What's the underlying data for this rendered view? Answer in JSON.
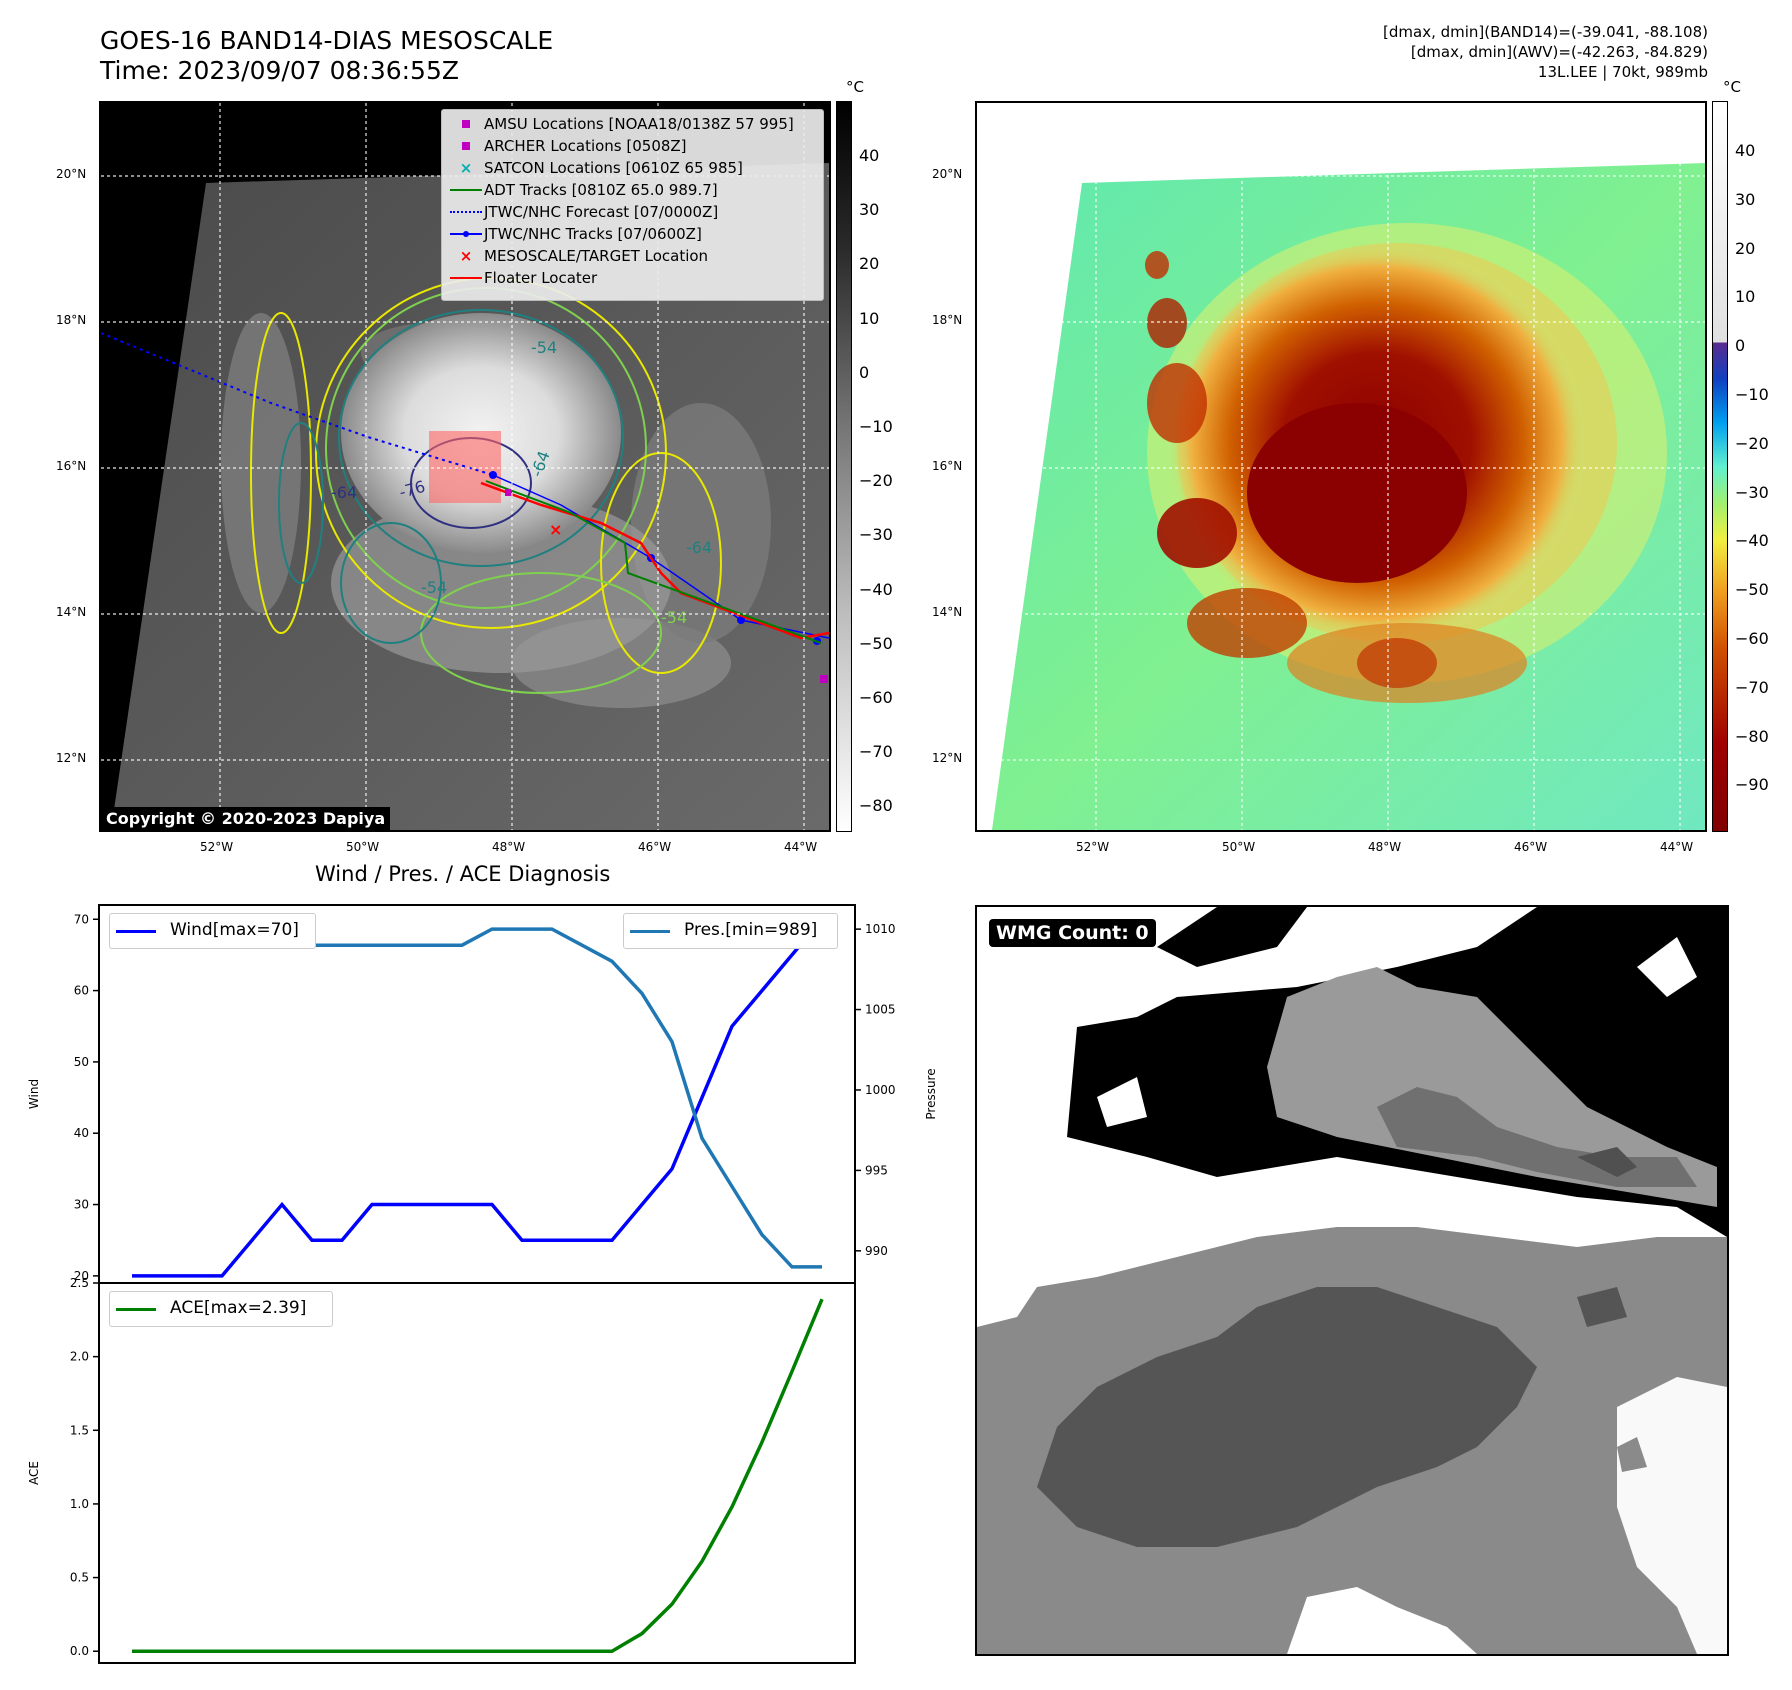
{
  "header": {
    "title_line1": "GOES-16 BAND14-DIAS MESOSCALE",
    "title_line2": "Time: 2023/09/07 08:36:55Z",
    "info_line1": "[dmax, dmin](BAND14)=(-39.041, -88.108)",
    "info_line2": "[dmax, dmin](AWV)=(-42.263, -84.829)",
    "info_line3": "13L.LEE | 70kt, 989mb"
  },
  "map": {
    "lat_labels": [
      "20°N",
      "18°N",
      "16°N",
      "14°N",
      "12°N"
    ],
    "lon_labels": [
      "52°W",
      "50°W",
      "48°W",
      "46°W",
      "44°W"
    ],
    "copyright": "Copyright © 2020-2023 Dapiya",
    "contour_labels": [
      "-54",
      "-64",
      "-76",
      "-64",
      "-54",
      "-64",
      "-54"
    ],
    "legend": [
      {
        "symbol": "square",
        "color": "#c000c0",
        "label": "AMSU Locations [NOAA18/0138Z 57 995]"
      },
      {
        "symbol": "square",
        "color": "#c000c0",
        "label": "ARCHER Locations [0508Z]"
      },
      {
        "symbol": "x",
        "color": "#00b0b0",
        "label": "SATCON Locations [0610Z 65 985]"
      },
      {
        "symbol": "line",
        "color": "#008000",
        "label": "ADT Tracks [0810Z 65.0 989.7]"
      },
      {
        "symbol": "dotted",
        "color": "#0000ff",
        "label": "JTWC/NHC Forecast [07/0000Z]"
      },
      {
        "symbol": "line-dot",
        "color": "#0000ff",
        "label": "JTWC/NHC Tracks [07/0600Z]"
      },
      {
        "symbol": "x",
        "color": "#ff0000",
        "label": "MESOSCALE/TARGET Location"
      },
      {
        "symbol": "line",
        "color": "#ff0000",
        "label": "Floater Locater"
      }
    ],
    "colorbar_left": {
      "unit": "°C",
      "ticks": [
        "40",
        "30",
        "20",
        "10",
        "0",
        "−10",
        "−20",
        "−30",
        "−40",
        "−50",
        "−60",
        "−70",
        "−80"
      ]
    },
    "colorbar_right": {
      "unit": "°C",
      "ticks": [
        "40",
        "30",
        "20",
        "10",
        "0",
        "−10",
        "−20",
        "−30",
        "−40",
        "−50",
        "−60",
        "−70",
        "−80",
        "−90"
      ]
    }
  },
  "wmg": {
    "label": "WMG Count: 0"
  },
  "chart_data": [
    {
      "type": "line",
      "title": "Wind / Pres. / ACE Diagnosis",
      "ylabel": "Wind",
      "ylim": [
        19,
        72
      ],
      "yticks": [
        "70",
        "60",
        "50",
        "40",
        "30",
        "20"
      ],
      "y2label": "Pressure",
      "y2lim": [
        988,
        1011.5
      ],
      "y2ticks": [
        "1010",
        "1005",
        "1000",
        "995",
        "990"
      ],
      "x": [
        0,
        1,
        2,
        3,
        4,
        5,
        6,
        7,
        8,
        9,
        10,
        11,
        12,
        13,
        14,
        15,
        16,
        17,
        18,
        19,
        20,
        21,
        22,
        23
      ],
      "series": [
        {
          "name": "Wind[max=70]",
          "axis": "left",
          "color": "#0000ff",
          "values": [
            20,
            20,
            20,
            20,
            25,
            30,
            25,
            25,
            30,
            30,
            30,
            30,
            30,
            25,
            25,
            25,
            25,
            30,
            35,
            45,
            55,
            60,
            65,
            70
          ]
        },
        {
          "name": "Pres.[min=989]",
          "axis": "right",
          "color": "#1f77b4",
          "values": [
            1010,
            1010,
            1010,
            1010,
            1009,
            1009,
            1009,
            1009,
            1009,
            1009,
            1009,
            1009,
            1010,
            1010,
            1010,
            1009,
            1008,
            1006,
            1003,
            997,
            994,
            991,
            989,
            989
          ]
        }
      ]
    },
    {
      "type": "line",
      "ylabel": "ACE",
      "ylim": [
        -0.08,
        2.5
      ],
      "yticks": [
        "2.5",
        "2.0",
        "1.5",
        "1.0",
        "0.5",
        "0.0"
      ],
      "x": [
        0,
        1,
        2,
        3,
        4,
        5,
        6,
        7,
        8,
        9,
        10,
        11,
        12,
        13,
        14,
        15,
        16,
        17,
        18,
        19,
        20,
        21,
        22,
        23
      ],
      "series": [
        {
          "name": "ACE[max=2.39]",
          "color": "#008000",
          "values": [
            0,
            0,
            0,
            0,
            0,
            0,
            0,
            0,
            0,
            0,
            0,
            0,
            0,
            0,
            0,
            0,
            0,
            0.12,
            0.32,
            0.61,
            0.98,
            1.42,
            1.9,
            2.39
          ]
        }
      ]
    }
  ]
}
